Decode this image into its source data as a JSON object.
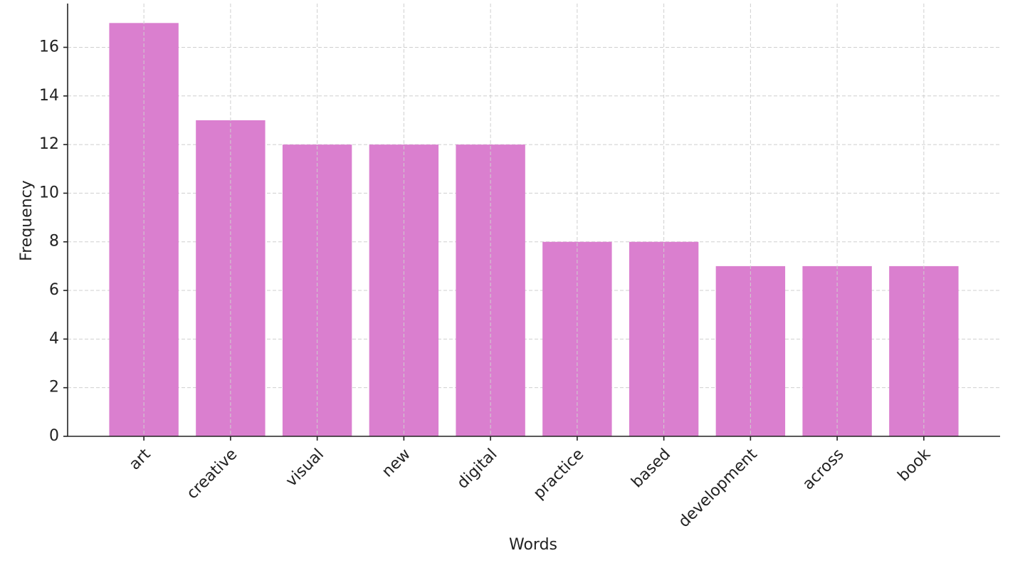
{
  "chart_data": {
    "type": "bar",
    "x_label": "Words",
    "y_label": "Frequency",
    "categories": [
      "art",
      "creative",
      "visual",
      "new",
      "digital",
      "practice",
      "based",
      "development",
      "across",
      "book"
    ],
    "values": [
      17,
      13,
      12,
      12,
      12,
      8,
      8,
      7,
      7,
      7
    ],
    "color": "#da7fcf",
    "ylim": [
      0,
      17.8
    ],
    "yticks": [
      0,
      2,
      4,
      6,
      8,
      10,
      12,
      14,
      16
    ],
    "grid": true
  }
}
